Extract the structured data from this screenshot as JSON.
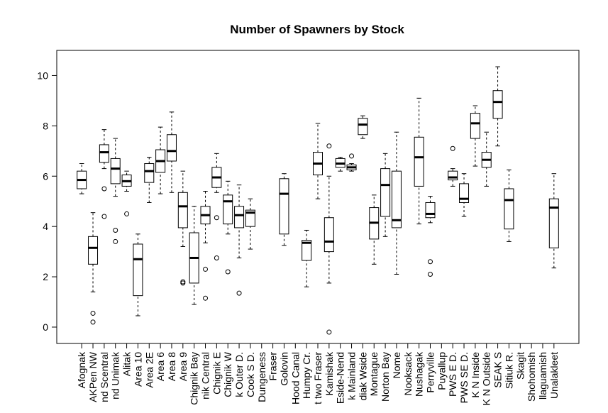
{
  "chart_data": {
    "type": "boxplot",
    "title": "Number of Spawners by Stock",
    "categories": [
      "Afognak",
      "AKPen NW",
      "nd Scentral",
      "nd Unimak",
      "Alitak",
      "Area 10",
      "Area 2E",
      "Area 6",
      "Area 8",
      "Area 9",
      "Chignik Bay",
      "nik Central",
      "Chignik E",
      "Chignik W",
      "k Outer D.",
      "Cook S D.",
      "Dungeness",
      "Fraser",
      "Golovin",
      "Hood Canal",
      "Humpy Cr.",
      "t two Fraser",
      "Kamishak",
      "Eside-Nend",
      "k Mainland",
      "diak Wside",
      "Montague",
      "Norton Bay",
      "Nome",
      "Nooksack",
      "Nushagak",
      "Perryville",
      "Puyallup",
      "PWS E D.",
      "PWS SE D.",
      "K N Inside",
      "K N Outside",
      "SEAK S",
      "Sitiuk R.",
      "Skagit",
      "Shohomish",
      "llaguamish",
      "Unalakleet"
    ],
    "boxes": [
      {
        "min": 5.3,
        "q1": 5.5,
        "median": 5.85,
        "q3": 6.2,
        "max": 6.5,
        "outliers": []
      },
      {
        "min": 1.4,
        "q1": 2.5,
        "median": 3.15,
        "q3": 3.6,
        "max": 4.55,
        "outliers": [
          0.55,
          0.2
        ]
      },
      {
        "min": 6.3,
        "q1": 6.55,
        "median": 6.95,
        "q3": 7.25,
        "max": 7.85,
        "outliers": [
          5.5,
          4.4
        ]
      },
      {
        "min": 5.2,
        "q1": 5.7,
        "median": 6.3,
        "q3": 6.7,
        "max": 7.5,
        "outliers": [
          3.85,
          3.4
        ]
      },
      {
        "min": 5.4,
        "q1": 5.6,
        "median": 5.8,
        "q3": 6.05,
        "max": 6.2,
        "outliers": [
          4.5
        ]
      },
      {
        "min": 0.45,
        "q1": 1.25,
        "median": 2.7,
        "q3": 3.3,
        "max": 3.7,
        "outliers": []
      },
      {
        "min": 4.95,
        "q1": 5.75,
        "median": 6.2,
        "q3": 6.5,
        "max": 6.75,
        "outliers": []
      },
      {
        "min": 5.3,
        "q1": 6.15,
        "median": 6.6,
        "q3": 7.05,
        "max": 7.95,
        "outliers": []
      },
      {
        "min": 5.35,
        "q1": 6.6,
        "median": 7.0,
        "q3": 7.65,
        "max": 8.55,
        "outliers": []
      },
      {
        "min": 3.2,
        "q1": 3.95,
        "median": 4.8,
        "q3": 5.35,
        "max": 6.2,
        "outliers": [
          1.8,
          1.75
        ]
      },
      {
        "min": 0.9,
        "q1": 1.75,
        "median": 2.75,
        "q3": 3.75,
        "max": 4.8,
        "outliers": []
      },
      {
        "min": 3.35,
        "q1": 4.1,
        "median": 4.45,
        "q3": 4.8,
        "max": 5.4,
        "outliers": [
          2.3,
          1.15
        ]
      },
      {
        "min": 5.35,
        "q1": 5.55,
        "median": 5.95,
        "q3": 6.35,
        "max": 6.9,
        "outliers": [
          4.35,
          2.75
        ]
      },
      {
        "min": 3.7,
        "q1": 4.1,
        "median": 5.0,
        "q3": 5.25,
        "max": 5.8,
        "outliers": [
          2.2
        ]
      },
      {
        "min": 2.75,
        "q1": 3.95,
        "median": 4.45,
        "q3": 4.8,
        "max": 5.65,
        "outliers": [
          1.35
        ]
      },
      {
        "min": 3.1,
        "q1": 4.0,
        "median": 4.55,
        "q3": 4.65,
        "max": 5.1,
        "outliers": []
      },
      null,
      null,
      {
        "min": 3.25,
        "q1": 3.7,
        "median": 5.3,
        "q3": 5.9,
        "max": 6.1,
        "outliers": []
      },
      null,
      {
        "min": 1.6,
        "q1": 2.65,
        "median": 3.35,
        "q3": 3.45,
        "max": 3.85,
        "outliers": []
      },
      {
        "min": 5.1,
        "q1": 6.05,
        "median": 6.5,
        "q3": 6.95,
        "max": 8.1,
        "outliers": []
      },
      {
        "min": 1.75,
        "q1": 3.0,
        "median": 3.4,
        "q3": 4.35,
        "max": 6.0,
        "outliers": [
          7.2,
          -0.2
        ]
      },
      {
        "min": 6.2,
        "q1": 6.35,
        "median": 6.5,
        "q3": 6.7,
        "max": 6.75,
        "outliers": []
      },
      {
        "min": 6.2,
        "q1": 6.25,
        "median": 6.35,
        "q3": 6.45,
        "max": 6.5,
        "outliers": [
          6.8
        ]
      },
      {
        "min": 7.5,
        "q1": 7.65,
        "median": 8.05,
        "q3": 8.3,
        "max": 8.4,
        "outliers": []
      },
      {
        "min": 2.5,
        "q1": 3.5,
        "median": 4.15,
        "q3": 4.75,
        "max": 5.25,
        "outliers": []
      },
      {
        "min": 3.6,
        "q1": 4.4,
        "median": 5.65,
        "q3": 6.3,
        "max": 6.9,
        "outliers": []
      },
      {
        "min": 2.1,
        "q1": 3.95,
        "median": 4.25,
        "q3": 6.2,
        "max": 7.75,
        "outliers": []
      },
      null,
      {
        "min": 4.1,
        "q1": 5.6,
        "median": 6.75,
        "q3": 7.55,
        "max": 9.1,
        "outliers": []
      },
      {
        "min": 4.15,
        "q1": 4.35,
        "median": 4.5,
        "q3": 4.95,
        "max": 5.2,
        "outliers": [
          2.6,
          2.1
        ]
      },
      null,
      {
        "min": 5.6,
        "q1": 5.85,
        "median": 5.95,
        "q3": 6.2,
        "max": 6.3,
        "outliers": [
          7.1
        ]
      },
      {
        "min": 4.4,
        "q1": 4.95,
        "median": 5.1,
        "q3": 5.7,
        "max": 6.1,
        "outliers": []
      },
      {
        "min": 6.4,
        "q1": 7.5,
        "median": 8.1,
        "q3": 8.5,
        "max": 8.8,
        "outliers": []
      },
      {
        "min": 5.6,
        "q1": 6.35,
        "median": 6.65,
        "q3": 6.95,
        "max": 7.75,
        "outliers": []
      },
      {
        "min": 7.2,
        "q1": 8.3,
        "median": 8.95,
        "q3": 9.4,
        "max": 10.35,
        "outliers": []
      },
      {
        "min": 3.4,
        "q1": 3.9,
        "median": 5.05,
        "q3": 5.5,
        "max": 6.25,
        "outliers": []
      },
      null,
      null,
      null,
      {
        "min": 2.35,
        "q1": 3.15,
        "median": 4.75,
        "q3": 5.1,
        "max": 6.1,
        "outliers": []
      }
    ],
    "ylim": [
      -0.65,
      11.0
    ],
    "yticks": [
      0,
      2,
      4,
      6,
      8,
      10
    ],
    "color": "#000000"
  }
}
